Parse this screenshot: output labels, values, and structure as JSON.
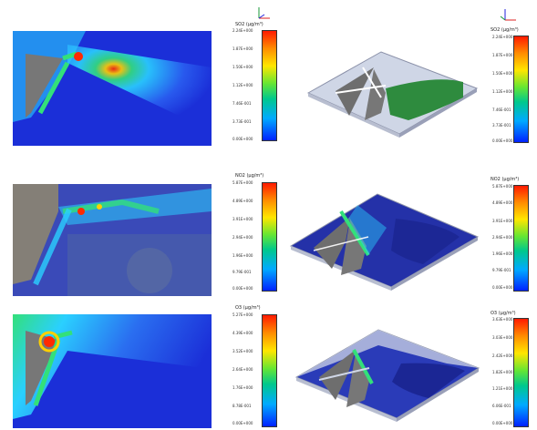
{
  "rows": [
    {
      "bar_left_title": "SO2  (µg/m³)",
      "bar_left_ticks": [
        "2.24E+000",
        "1.87E+000",
        "1.50E+000",
        "1.12E+000",
        "7.46E-001",
        "3.73E-001",
        "0.00E+000"
      ],
      "bar_right_title": "SO2  (µg/m³)",
      "bar_right_ticks": [
        "2.24E+000",
        "1.87E+000",
        "1.50E+000",
        "1.12E+000",
        "7.46E-001",
        "3.73E-001",
        "0.00E+000"
      ]
    },
    {
      "bar_left_title": "NO2  (µg/m³)",
      "bar_left_ticks": [
        "5.87E+000",
        "4.89E+000",
        "3.91E+000",
        "2.94E+000",
        "1.96E+000",
        "9.79E-001",
        "0.00E+000"
      ],
      "bar_right_title": "NO2  (µg/m³)",
      "bar_right_ticks": [
        "5.87E+000",
        "4.89E+000",
        "3.91E+000",
        "2.94E+000",
        "1.96E+000",
        "9.79E-001",
        "0.00E+000"
      ]
    },
    {
      "bar_left_title": "O3  (µg/m³)",
      "bar_left_ticks": [
        "5.27E+000",
        "4.39E+000",
        "3.52E+000",
        "2.64E+000",
        "1.76E+000",
        "8.78E-001",
        "0.00E+000"
      ],
      "bar_right_title": "O3  (µg/m³)",
      "bar_right_ticks": [
        "3.63E+000",
        "3.03E+000",
        "2.42E+000",
        "1.82E+000",
        "1.21E+000",
        "6.06E-001",
        "0.00E+000"
      ]
    }
  ],
  "colors": {
    "sea": "#1b2fd8",
    "plume_hot": "#ff2a00",
    "plume_green": "#33e07a",
    "plume_cyan": "#2ad0ff",
    "land_gray": "#7a7a7a",
    "land_green": "#2e8b3e",
    "plate_light": "#cfd6e6",
    "plate_dark": "#2431a8"
  }
}
